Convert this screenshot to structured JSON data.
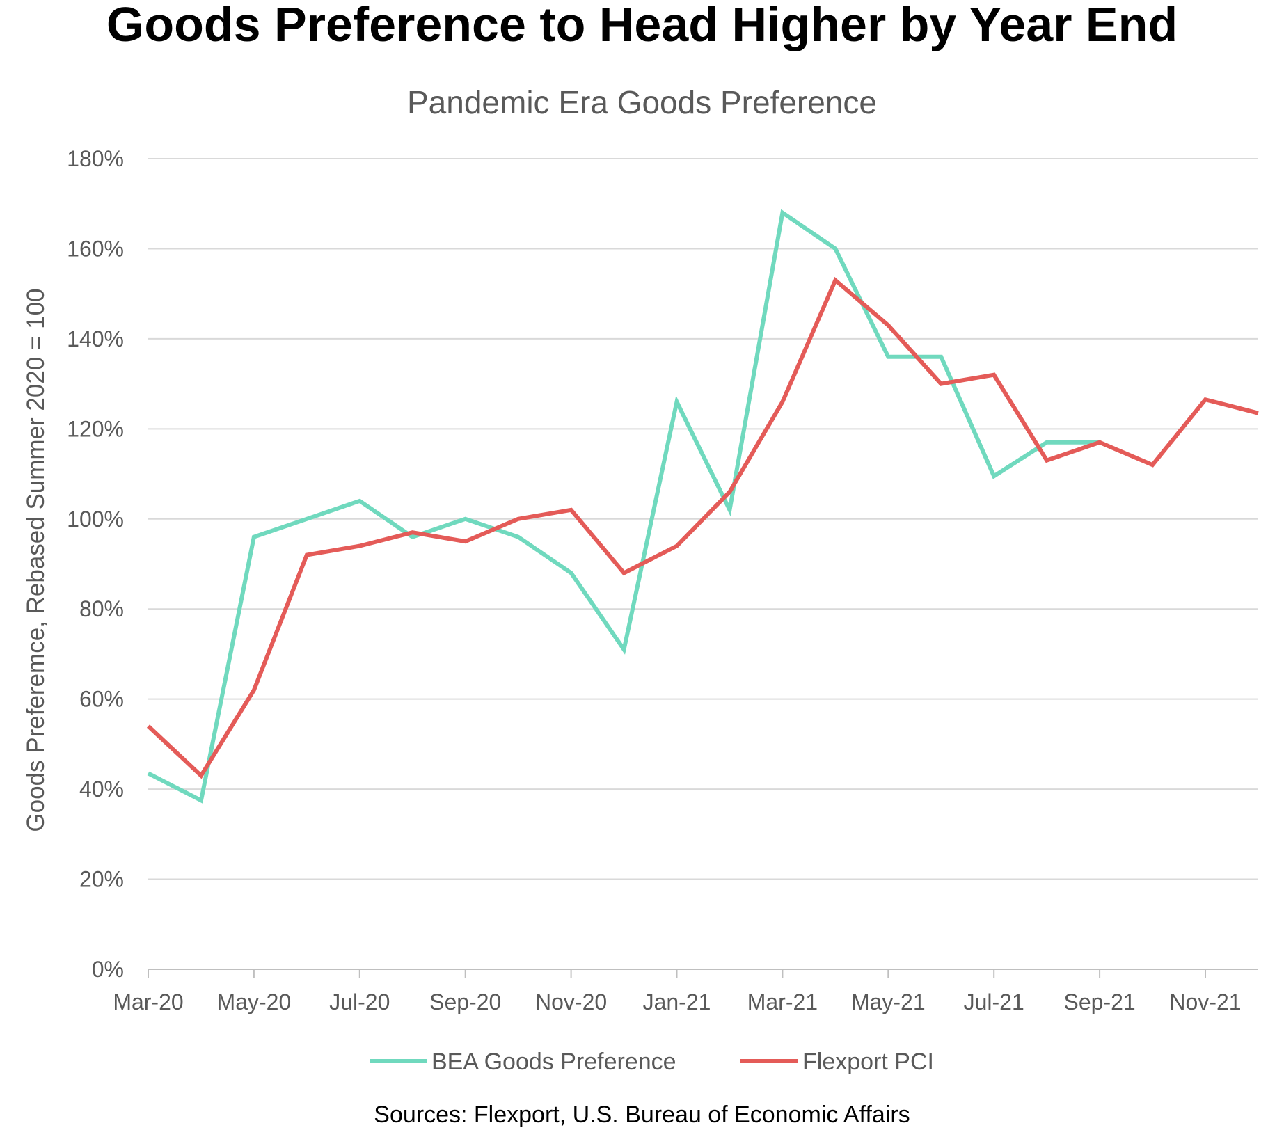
{
  "header": {
    "title": "Goods Preference to Head Higher by Year End"
  },
  "footer": {
    "sources": "Sources: Flexport, U.S. Bureau of Economic Affairs"
  },
  "chart_data": {
    "type": "line",
    "title": "Pandemic Era Goods Preference",
    "xlabel": "",
    "ylabel": "Goods Preferemce, Rebased Summer 2020 = 100",
    "ylim": [
      0,
      180
    ],
    "yticks": [
      0,
      20,
      40,
      60,
      80,
      100,
      120,
      140,
      160,
      180
    ],
    "ytick_labels": [
      "0%",
      "20%",
      "40%",
      "60%",
      "80%",
      "100%",
      "120%",
      "140%",
      "160%",
      "180%"
    ],
    "grid": true,
    "legend_position": "bottom",
    "x": [
      "Mar-20",
      "Apr-20",
      "May-20",
      "Jun-20",
      "Jul-20",
      "Aug-20",
      "Sep-20",
      "Oct-20",
      "Nov-20",
      "Dec-20",
      "Jan-21",
      "Feb-21",
      "Mar-21",
      "Apr-21",
      "May-21",
      "Jun-21",
      "Jul-21",
      "Aug-21",
      "Sep-21",
      "Oct-21",
      "Nov-21",
      "Dec-21"
    ],
    "x_tick_labels": [
      "Mar-20",
      "May-20",
      "Jul-20",
      "Sep-20",
      "Nov-20",
      "Jan-21",
      "Mar-21",
      "May-21",
      "Jul-21",
      "Sep-21",
      "Nov-21"
    ],
    "series": [
      {
        "name": "BEA Goods Preference",
        "color": "#70d9be",
        "values": [
          43.5,
          37.5,
          96,
          100,
          104,
          96,
          100,
          96,
          88,
          71,
          126,
          102,
          168,
          160,
          136,
          136,
          109.5,
          117,
          117,
          null,
          null,
          null
        ]
      },
      {
        "name": "Flexport PCI",
        "color": "#e45b58",
        "values": [
          54,
          43,
          62,
          92,
          94,
          97,
          95,
          100,
          102,
          88,
          94,
          106,
          126,
          153,
          143,
          130,
          132,
          113,
          117,
          112,
          126.5,
          123.5
        ]
      }
    ]
  }
}
